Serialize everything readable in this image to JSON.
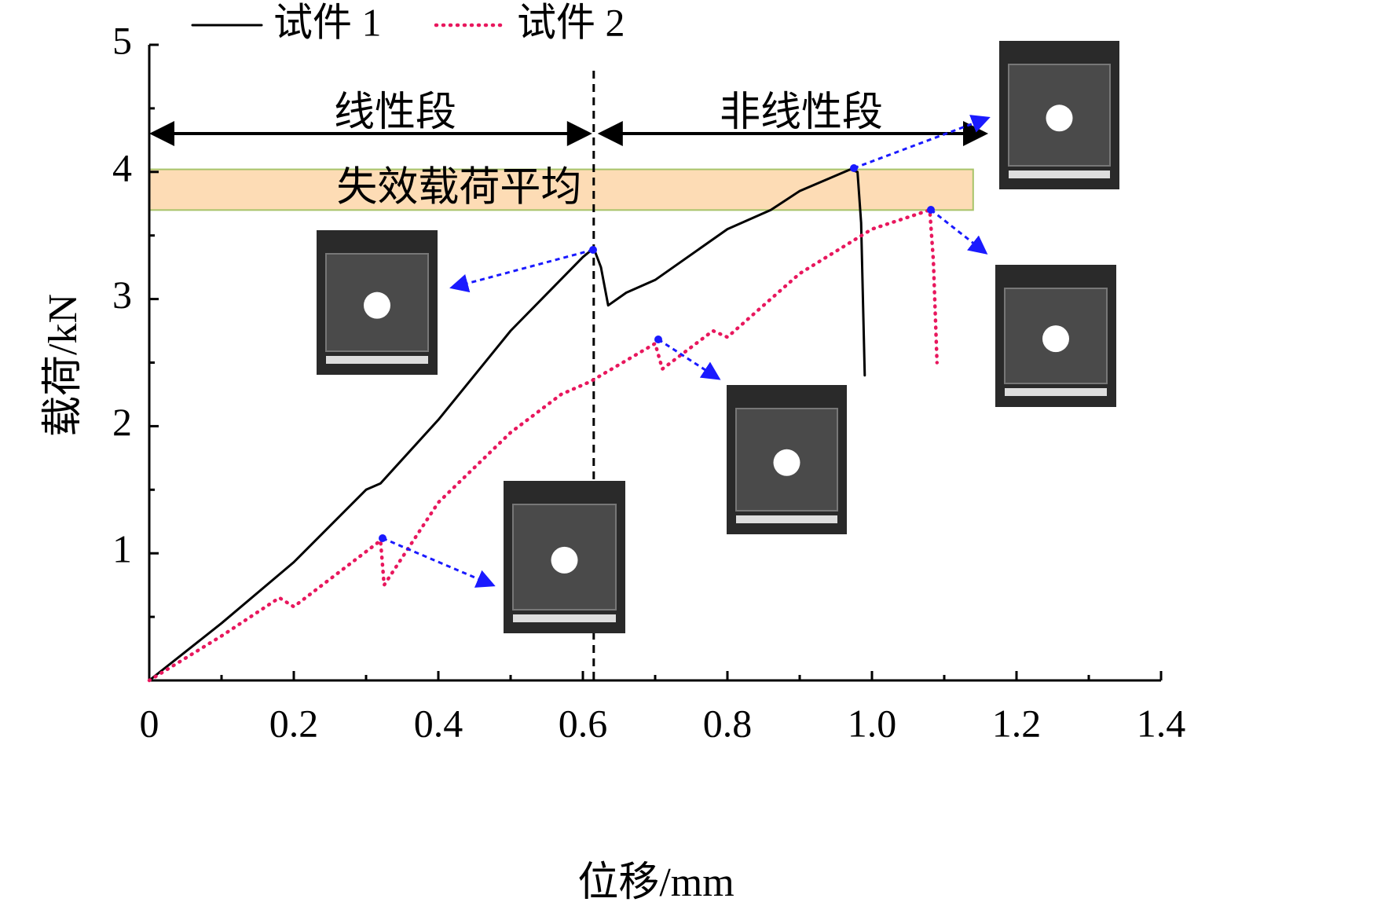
{
  "chart_data": {
    "type": "line",
    "xlabel": "位移/mm",
    "ylabel": "载荷/kN",
    "xlim": [
      0,
      1.4
    ],
    "ylim": [
      0,
      5
    ],
    "xticks": [
      0,
      0.2,
      0.4,
      0.6,
      0.8,
      {
        "value": 1,
        "label": "1.0"
      },
      1.2,
      1.4
    ],
    "yticks": [
      1,
      2,
      3,
      4,
      5
    ],
    "minor_xticks": [
      0.1,
      0.3,
      0.5,
      0.7,
      0.9,
      1.1,
      1.3
    ],
    "minor_yticks": [
      0.5,
      1.5,
      2.5,
      3.5,
      4.5
    ],
    "series": [
      {
        "name": "试件 1",
        "color": "#000000",
        "style": "solid",
        "x": [
          0,
          0.1,
          0.2,
          0.3,
          0.32,
          0.4,
          0.5,
          0.6,
          0.615,
          0.625,
          0.635,
          0.66,
          0.7,
          0.8,
          0.86,
          0.9,
          0.97,
          0.98,
          0.985,
          0.99
        ],
        "values": [
          0,
          0.45,
          0.93,
          1.5,
          1.55,
          2.05,
          2.75,
          3.33,
          3.4,
          3.25,
          2.95,
          3.05,
          3.15,
          3.55,
          3.7,
          3.85,
          4.02,
          4.0,
          3.6,
          2.4
        ]
      },
      {
        "name": "试件 2",
        "color": "#e8175d",
        "style": "dotted",
        "x": [
          0,
          0.1,
          0.18,
          0.2,
          0.32,
          0.325,
          0.4,
          0.5,
          0.57,
          0.61,
          0.7,
          0.71,
          0.78,
          0.8,
          0.9,
          1.0,
          1.08,
          1.085,
          1.09
        ],
        "values": [
          0,
          0.35,
          0.65,
          0.58,
          1.1,
          0.75,
          1.4,
          1.95,
          2.25,
          2.35,
          2.65,
          2.45,
          2.75,
          2.7,
          3.2,
          3.55,
          3.7,
          3.3,
          2.5
        ]
      }
    ],
    "boundary_x": 0.615,
    "regions": [
      "线性段",
      "非线性段"
    ],
    "failure_band": {
      "label": "失效载荷平均",
      "x": [
        0,
        1.14
      ],
      "y": [
        3.7,
        4.02
      ],
      "color": "#fddcb5"
    }
  }
}
